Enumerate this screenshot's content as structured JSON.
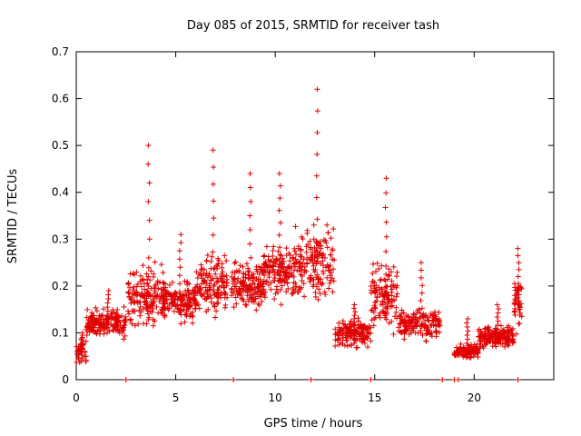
{
  "chart_data": {
    "type": "scatter",
    "title": "Day 085 of 2015, SRMTID for receiver tash",
    "xlabel": "GPS time / hours",
    "ylabel": "SRMTID / TECUs",
    "xlim": [
      0,
      24
    ],
    "ylim": [
      0,
      0.7
    ],
    "xticks": [
      0,
      5,
      10,
      15,
      20
    ],
    "yticks": [
      0,
      0.1,
      0.2,
      0.3,
      0.4,
      0.5,
      0.6,
      0.7
    ],
    "xtick_labels": [
      "0",
      "5",
      "10",
      "15",
      "20"
    ],
    "ytick_labels": [
      "0",
      "0.1",
      "0.2",
      "0.3",
      "0.4",
      "0.5",
      "0.6",
      "0.7"
    ],
    "marker": "plus",
    "color": "#e00000",
    "grid": false,
    "bursts": [
      {
        "start": 0.0,
        "end": 0.5,
        "level": 0.06,
        "spread": 0.04,
        "peak": 0.1,
        "n": 40
      },
      {
        "start": 0.5,
        "end": 2.5,
        "level": 0.12,
        "spread": 0.04,
        "peak": 0.19,
        "n": 170
      },
      {
        "start": 2.6,
        "end": 4.5,
        "level": 0.18,
        "spread": 0.09,
        "peak": 0.5,
        "n": 160
      },
      {
        "start": 4.3,
        "end": 6.0,
        "level": 0.17,
        "spread": 0.06,
        "peak": 0.31,
        "n": 150
      },
      {
        "start": 6.0,
        "end": 7.6,
        "level": 0.2,
        "spread": 0.08,
        "peak": 0.49,
        "n": 140
      },
      {
        "start": 7.8,
        "end": 9.5,
        "level": 0.2,
        "spread": 0.07,
        "peak": 0.44,
        "n": 150
      },
      {
        "start": 9.3,
        "end": 11.0,
        "level": 0.23,
        "spread": 0.08,
        "peak": 0.44,
        "n": 150
      },
      {
        "start": 11.0,
        "end": 13.0,
        "level": 0.25,
        "spread": 0.1,
        "peak": 0.62,
        "n": 160
      },
      {
        "start": 13.0,
        "end": 14.8,
        "level": 0.1,
        "spread": 0.04,
        "peak": 0.16,
        "n": 150
      },
      {
        "start": 14.8,
        "end": 16.2,
        "level": 0.18,
        "spread": 0.09,
        "peak": 0.43,
        "n": 120
      },
      {
        "start": 16.2,
        "end": 18.3,
        "level": 0.12,
        "spread": 0.05,
        "peak": 0.25,
        "n": 160
      },
      {
        "start": 19.0,
        "end": 20.2,
        "level": 0.06,
        "spread": 0.02,
        "peak": 0.13,
        "n": 110
      },
      {
        "start": 20.2,
        "end": 22.0,
        "level": 0.09,
        "spread": 0.03,
        "peak": 0.16,
        "n": 170
      },
      {
        "start": 22.0,
        "end": 22.4,
        "level": 0.16,
        "spread": 0.07,
        "peak": 0.28,
        "n": 40
      }
    ],
    "baseline_x": [
      2.5,
      7.9,
      11.8,
      14.8,
      18.4,
      19.0,
      19.2,
      22.2
    ]
  }
}
